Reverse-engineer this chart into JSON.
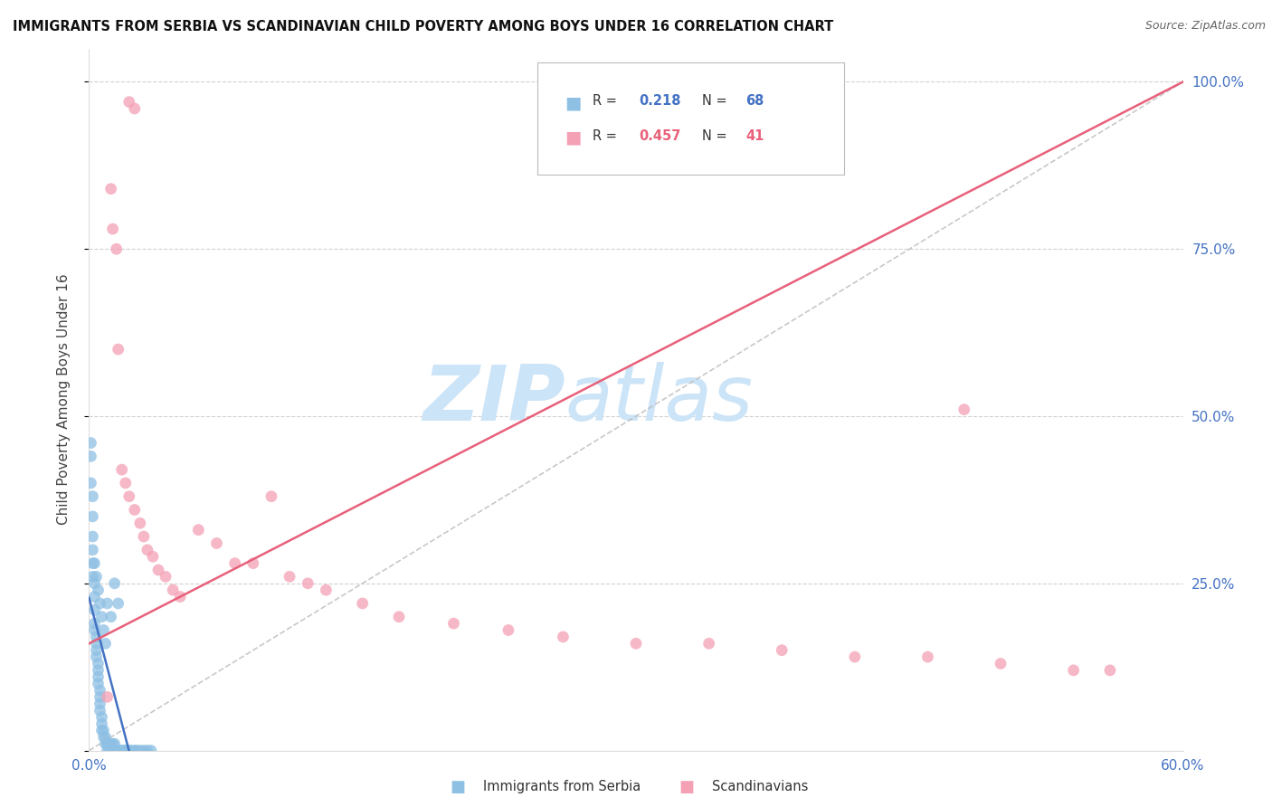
{
  "title": "IMMIGRANTS FROM SERBIA VS SCANDINAVIAN CHILD POVERTY AMONG BOYS UNDER 16 CORRELATION CHART",
  "source": "Source: ZipAtlas.com",
  "ylabel": "Child Poverty Among Boys Under 16",
  "xlim": [
    0.0,
    0.6
  ],
  "ylim": [
    0.0,
    1.05
  ],
  "legend_label1": "Immigrants from Serbia",
  "legend_label2": "Scandinavians",
  "blue_color": "#8ec0e4",
  "pink_color": "#f4a0b5",
  "blue_line_color": "#4472c4",
  "pink_line_color": "#e8607a",
  "watermark": "ZIPatlas",
  "watermark_color": "#cce4f7",
  "blue_r_text": "0.218",
  "blue_n_text": "68",
  "pink_r_text": "0.457",
  "pink_n_text": "41",
  "serbia_x": [
    0.001,
    0.001,
    0.001,
    0.002,
    0.002,
    0.002,
    0.002,
    0.002,
    0.002,
    0.003,
    0.003,
    0.003,
    0.003,
    0.003,
    0.004,
    0.004,
    0.004,
    0.004,
    0.005,
    0.005,
    0.005,
    0.005,
    0.006,
    0.006,
    0.006,
    0.006,
    0.007,
    0.007,
    0.007,
    0.008,
    0.008,
    0.009,
    0.009,
    0.01,
    0.01,
    0.01,
    0.011,
    0.011,
    0.012,
    0.013,
    0.014,
    0.014,
    0.015,
    0.016,
    0.017,
    0.018,
    0.019,
    0.02,
    0.021,
    0.022,
    0.023,
    0.025,
    0.026,
    0.028,
    0.03,
    0.032,
    0.034,
    0.003,
    0.004,
    0.005,
    0.006,
    0.007,
    0.008,
    0.009,
    0.01,
    0.012,
    0.014,
    0.016
  ],
  "serbia_y": [
    0.44,
    0.46,
    0.4,
    0.38,
    0.35,
    0.32,
    0.3,
    0.28,
    0.26,
    0.25,
    0.23,
    0.21,
    0.19,
    0.18,
    0.17,
    0.16,
    0.15,
    0.14,
    0.13,
    0.12,
    0.11,
    0.1,
    0.09,
    0.08,
    0.07,
    0.06,
    0.05,
    0.04,
    0.03,
    0.03,
    0.02,
    0.02,
    0.01,
    0.01,
    0.01,
    0.0,
    0.0,
    0.01,
    0.01,
    0.01,
    0.01,
    0.0,
    0.0,
    0.0,
    0.0,
    0.0,
    0.0,
    0.0,
    0.0,
    0.0,
    0.0,
    0.0,
    0.0,
    0.0,
    0.0,
    0.0,
    0.0,
    0.28,
    0.26,
    0.24,
    0.22,
    0.2,
    0.18,
    0.16,
    0.22,
    0.2,
    0.25,
    0.22
  ],
  "scand_x": [
    0.022,
    0.025,
    0.012,
    0.013,
    0.015,
    0.016,
    0.018,
    0.02,
    0.022,
    0.025,
    0.028,
    0.03,
    0.032,
    0.035,
    0.038,
    0.042,
    0.046,
    0.05,
    0.06,
    0.07,
    0.08,
    0.09,
    0.1,
    0.11,
    0.12,
    0.13,
    0.15,
    0.17,
    0.2,
    0.23,
    0.26,
    0.3,
    0.34,
    0.38,
    0.42,
    0.46,
    0.5,
    0.54,
    0.56,
    0.48,
    0.01
  ],
  "scand_y": [
    0.97,
    0.96,
    0.84,
    0.78,
    0.75,
    0.6,
    0.42,
    0.4,
    0.38,
    0.36,
    0.34,
    0.32,
    0.3,
    0.29,
    0.27,
    0.26,
    0.24,
    0.23,
    0.33,
    0.31,
    0.28,
    0.28,
    0.38,
    0.26,
    0.25,
    0.24,
    0.22,
    0.2,
    0.19,
    0.18,
    0.17,
    0.16,
    0.16,
    0.15,
    0.14,
    0.14,
    0.13,
    0.12,
    0.12,
    0.51,
    0.08
  ],
  "blue_trend": [
    0.0,
    0.035,
    0.22,
    0.27
  ],
  "pink_trend_x0": 0.0,
  "pink_trend_y0": 0.16,
  "pink_trend_x1": 0.6,
  "pink_trend_y1": 1.0
}
